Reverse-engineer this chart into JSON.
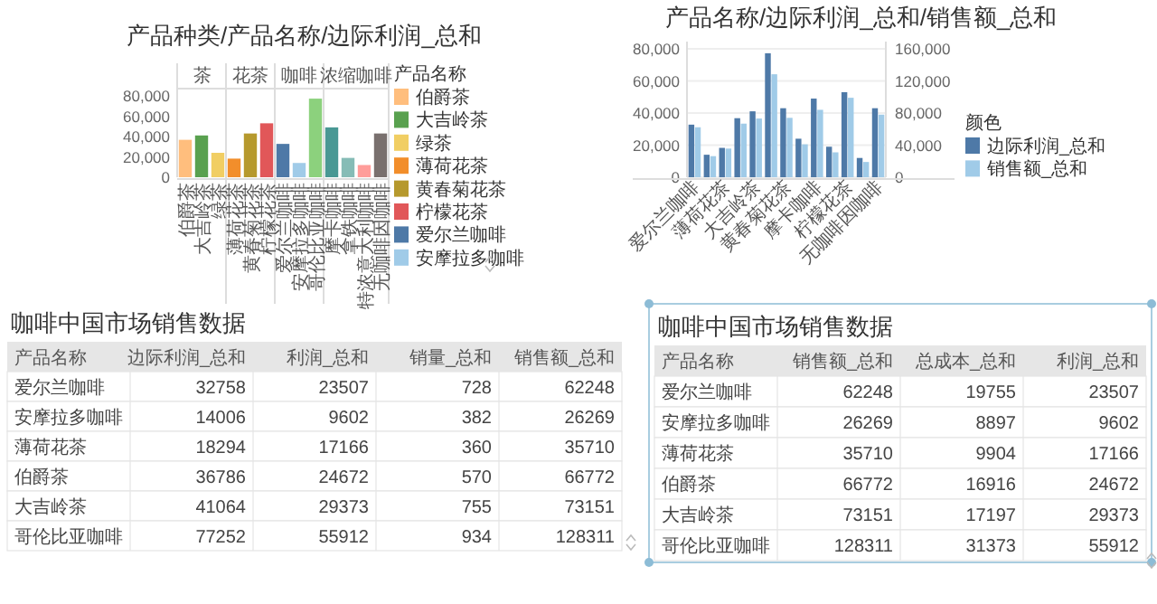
{
  "chart_data": [
    {
      "type": "bar",
      "title": "产品种类/产品名称/边际利润_总和",
      "categories": [
        "伯爵茶",
        "大吉岭茶",
        "绿茶",
        "薄荷花茶",
        "黄春菊花茶",
        "柠檬花茶",
        "爱尔兰咖啡",
        "安摩拉多咖啡",
        "哥伦比亚咖啡",
        "摩卡咖啡",
        "拿铁咖啡",
        "特浓意大利咖啡",
        "无咖啡因咖啡"
      ],
      "values": [
        36786,
        41064,
        24000,
        18294,
        43000,
        53000,
        32758,
        14006,
        77252,
        49000,
        19000,
        12000,
        43000
      ],
      "colors": [
        "#ffbe7d",
        "#59a14f",
        "#f1ce63",
        "#f28e2b",
        "#b6992d",
        "#e15759",
        "#4e79a7",
        "#a0cbe8",
        "#8cd17d",
        "#499894",
        "#86bcb6",
        "#ff9d9a",
        "#79706e"
      ],
      "ylim": [
        0,
        80000
      ],
      "yticks": [
        0,
        {
          "value": 20000,
          "label": "20,000"
        },
        {
          "value": 40000,
          "label": "40,000"
        },
        {
          "value": 60000,
          "label": "60,000"
        },
        {
          "value": 80000,
          "label": "80,000"
        }
      ],
      "annotations": [
        "茶",
        "花茶",
        "咖啡",
        "浓缩咖啡"
      ],
      "legend_title": "产品名称"
    },
    {
      "type": "bar",
      "title": "产品名称/边际利润_总和/销售额_总和",
      "categories": [
        "爱尔兰咖啡",
        null,
        "薄荷花茶",
        null,
        "大吉岭茶",
        null,
        "黄春菊花茶",
        null,
        "摩卡咖啡",
        null,
        "柠檬花茶",
        null,
        "无咖啡因咖啡"
      ],
      "series": [
        {
          "name": "边际利润_总和",
          "color": "#4e79a7",
          "axis": "y",
          "values": [
            32758,
            14006,
            18294,
            36786,
            41064,
            77252,
            43000,
            24000,
            49000,
            19000,
            53000,
            12000,
            43000
          ]
        },
        {
          "name": "销售额_总和",
          "color": "#a0cbe8",
          "axis": "y2",
          "values": [
            62248,
            26269,
            35710,
            66772,
            73151,
            128311,
            74000,
            41000,
            84000,
            31000,
            99000,
            19000,
            78000
          ]
        }
      ],
      "ylim": [
        0,
        80000
      ],
      "yticks": [
        0,
        {
          "value": 20000,
          "label": "20,000"
        },
        {
          "value": 40000,
          "label": "40,000"
        },
        {
          "value": 60000,
          "label": "60,000"
        },
        {
          "value": 80000,
          "label": "80,000"
        }
      ],
      "y2lim": [
        0,
        160000
      ],
      "y2ticks": [
        0,
        {
          "value": 40000,
          "label": "40,000"
        },
        {
          "value": 80000,
          "label": "80,000"
        },
        {
          "value": 120000,
          "label": "120,000"
        },
        {
          "value": 160000,
          "label": "160,000"
        }
      ],
      "grid": "y",
      "legend": "right",
      "legend_title": "颜色"
    },
    {
      "type": "other",
      "title": "咖啡中国市场销售数据",
      "xlabel": "产品名称",
      "categories": [
        "爱尔兰咖啡",
        "安摩拉多咖啡",
        "薄荷花茶",
        "伯爵茶",
        "大吉岭茶",
        "哥伦比亚咖啡"
      ],
      "series": [
        {
          "name": "边际利润_总和",
          "values": [
            32758,
            14006,
            18294,
            36786,
            41064,
            77252
          ]
        },
        {
          "name": "利润_总和",
          "values": [
            23507,
            9602,
            17166,
            24672,
            29373,
            55912
          ]
        },
        {
          "name": "销量_总和",
          "values": [
            728,
            382,
            360,
            570,
            755,
            934
          ]
        },
        {
          "name": "销售额_总和",
          "values": [
            62248,
            26269,
            35710,
            66772,
            73151,
            128311
          ]
        }
      ],
      "data_labels": true
    },
    {
      "type": "other",
      "title": "咖啡中国市场销售数据",
      "xlabel": "产品名称",
      "categories": [
        "爱尔兰咖啡",
        "安摩拉多咖啡",
        "薄荷花茶",
        "伯爵茶",
        "大吉岭茶",
        "哥伦比亚咖啡"
      ],
      "series": [
        {
          "name": "销售额_总和",
          "values": [
            62248,
            26269,
            35710,
            66772,
            73151,
            128311
          ]
        },
        {
          "name": "总成本_总和",
          "values": [
            19755,
            8897,
            9904,
            16916,
            17197,
            31373
          ]
        },
        {
          "name": "利润_总和",
          "values": [
            23507,
            9602,
            17166,
            24672,
            29373,
            55912
          ]
        }
      ],
      "data_labels": true
    }
  ]
}
